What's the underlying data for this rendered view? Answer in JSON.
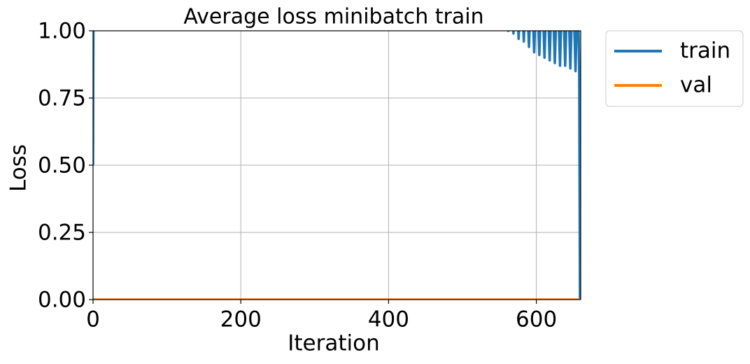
{
  "chart_data": {
    "type": "line",
    "title": "Average loss minibatch train",
    "x_label": "Iteration",
    "y_label": "Loss",
    "xlim": [
      0,
      660
    ],
    "ylim": [
      0,
      1
    ],
    "xticks": [
      0,
      200,
      400,
      600
    ],
    "yticks": [
      {
        "value": 0,
        "label": "0.00"
      },
      {
        "value": 0.25,
        "label": "0.25"
      },
      {
        "value": 0.5,
        "label": "0.50"
      },
      {
        "value": 0.75,
        "label": "0.75"
      },
      {
        "value": 1,
        "label": "1.00"
      }
    ],
    "grid": true,
    "legend": "outside upper right",
    "series": [
      {
        "name": "train",
        "color": "#1f77b4",
        "x": [
          0,
          1,
          559,
          562,
          565.5,
          569,
          572.5,
          576,
          579.5,
          583,
          586.5,
          590,
          593.5,
          597,
          600.5,
          604,
          607.5,
          611,
          614.5,
          618,
          621.5,
          625,
          628.5,
          632,
          635.5,
          639,
          642.5,
          646,
          649.5,
          653,
          656,
          658,
          659
        ],
        "values": [
          0.5,
          1.5,
          1.2,
          1.0,
          1.2,
          0.99,
          1.2,
          0.97,
          1.2,
          0.96,
          1.2,
          0.94,
          1.2,
          0.92,
          1.2,
          0.91,
          1.2,
          0.9,
          1.2,
          0.89,
          1.2,
          0.88,
          1.2,
          0.87,
          1.2,
          0.87,
          1.2,
          0.86,
          1.2,
          0.85,
          1.2,
          0.84,
          0
        ]
      },
      {
        "name": "val",
        "color": "#ff7f0e",
        "x": [
          0,
          660
        ],
        "values": [
          0,
          0
        ]
      }
    ]
  }
}
